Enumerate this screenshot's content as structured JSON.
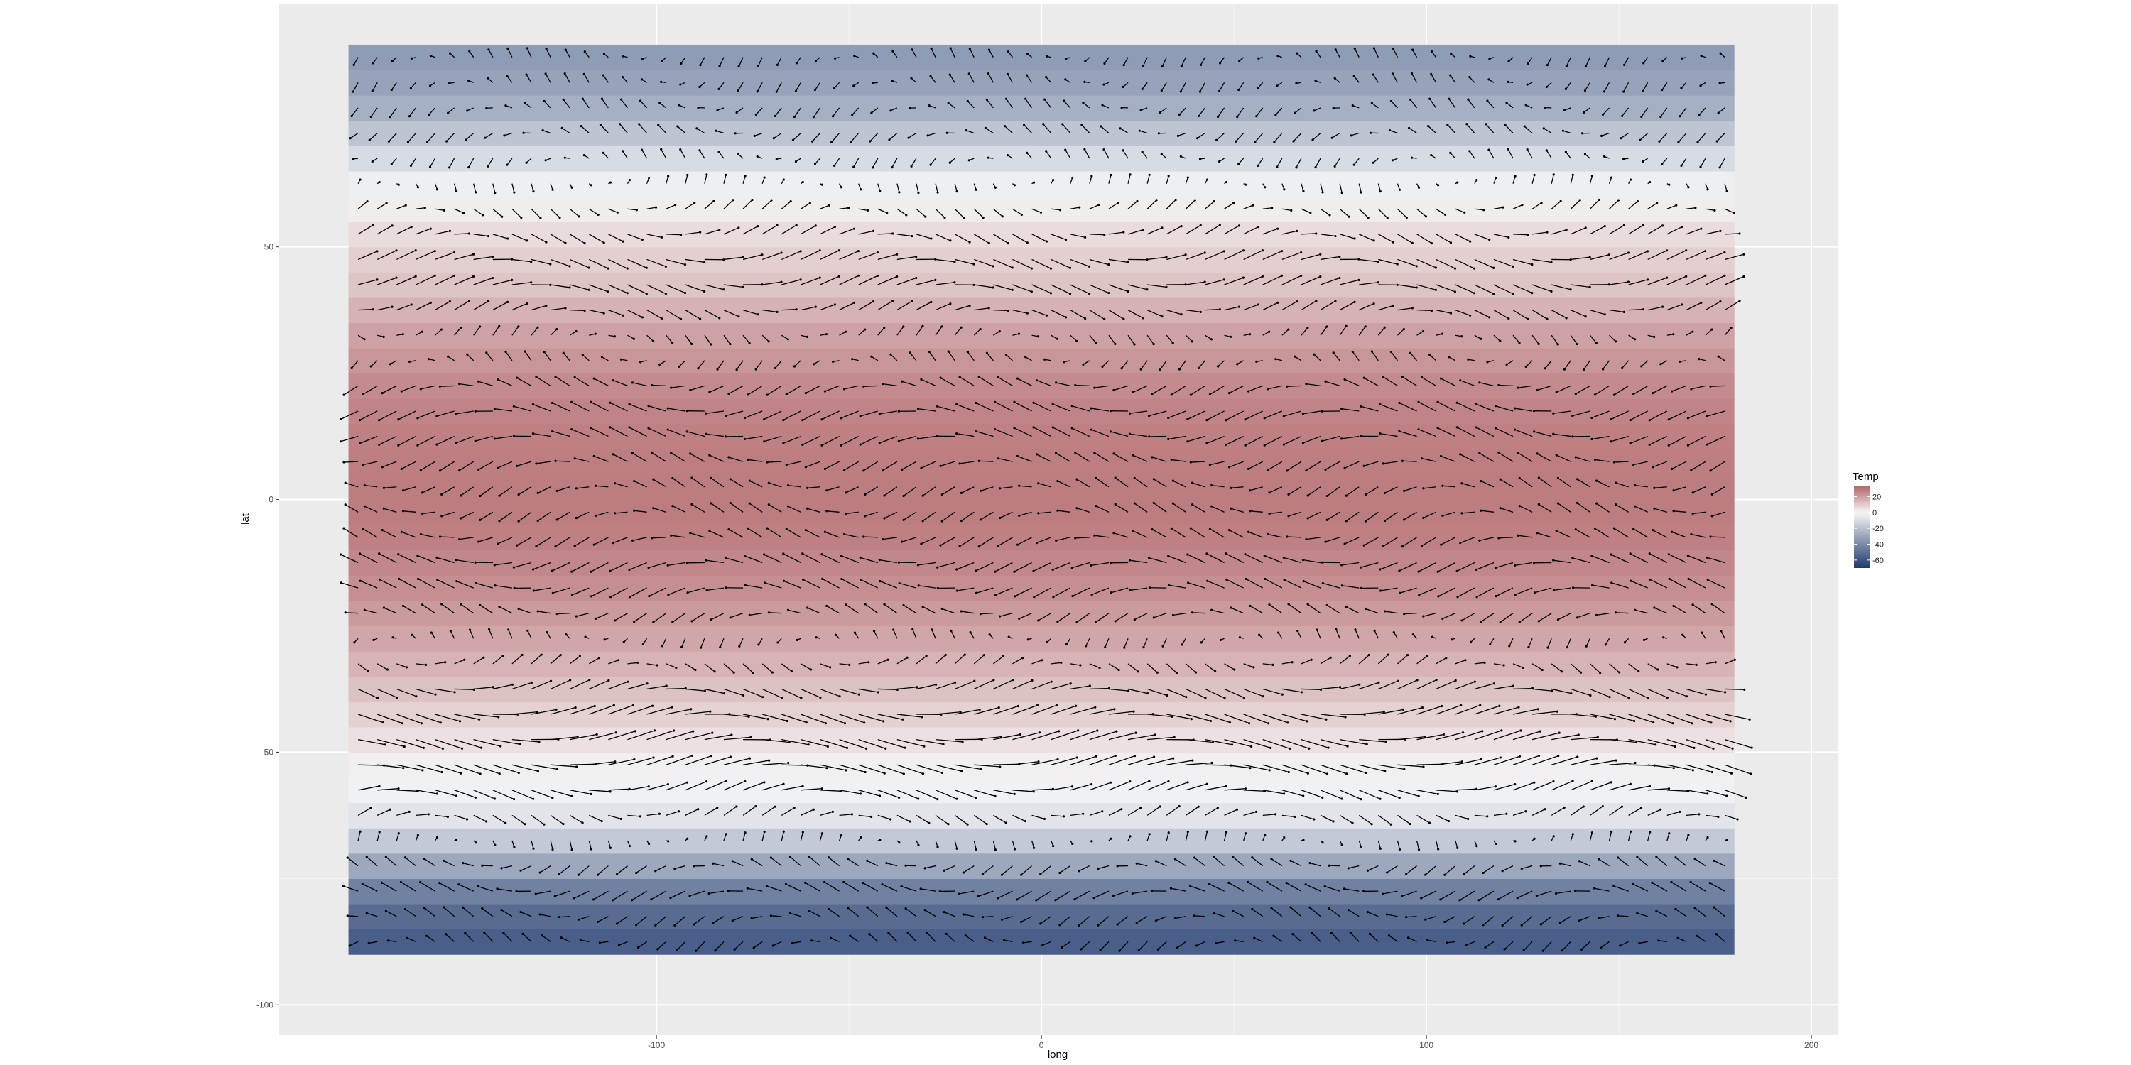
{
  "chart_data": {
    "type": "heatmap",
    "overlay": "vector-field",
    "title": "",
    "xlabel": "long",
    "ylabel": "lat",
    "xlim": [
      -198,
      207
    ],
    "ylim": [
      -106,
      98
    ],
    "xticks": [
      -100,
      0,
      100,
      200
    ],
    "yticks": [
      -100,
      -50,
      0,
      50
    ],
    "xtick_labels": [
      "-100",
      "0",
      "100",
      "200"
    ],
    "ytick_labels": [
      "-100",
      "-50",
      "0",
      "50"
    ],
    "grid": true,
    "legend": {
      "title": "Temp",
      "position": "right",
      "ticks": [
        20,
        0,
        -20,
        -40,
        -60
      ],
      "tick_labels": [
        "20",
        "0",
        "-20",
        "-40",
        "-60"
      ],
      "range": [
        -70,
        33
      ]
    },
    "color_scale": {
      "high": "#b2676b",
      "mid": "#f7f7f7",
      "low": "#1f3a6e",
      "midpoint": 0
    },
    "grid_extent": {
      "long": [
        -180,
        180
      ],
      "lat": [
        -90,
        90
      ]
    },
    "temperature_by_latitude": [
      {
        "lat": 88,
        "temp": -34
      },
      {
        "lat": 80,
        "temp": -30
      },
      {
        "lat": 72,
        "temp": -18
      },
      {
        "lat": 65,
        "temp": -6
      },
      {
        "lat": 58,
        "temp": 2
      },
      {
        "lat": 50,
        "temp": 8
      },
      {
        "lat": 42,
        "temp": 12
      },
      {
        "lat": 35,
        "temp": 18
      },
      {
        "lat": 25,
        "temp": 24
      },
      {
        "lat": 15,
        "temp": 27
      },
      {
        "lat": 5,
        "temp": 28
      },
      {
        "lat": -5,
        "temp": 28
      },
      {
        "lat": -15,
        "temp": 25
      },
      {
        "lat": -25,
        "temp": 20
      },
      {
        "lat": -35,
        "temp": 14
      },
      {
        "lat": -45,
        "temp": 7
      },
      {
        "lat": -55,
        "temp": 0
      },
      {
        "lat": -62,
        "temp": -6
      },
      {
        "lat": -70,
        "temp": -22
      },
      {
        "lat": -78,
        "temp": -45
      },
      {
        "lat": -85,
        "temp": -55
      },
      {
        "lat": -90,
        "temp": -58
      }
    ],
    "wind_by_latitude": [
      {
        "lat": 85,
        "u": -2
      },
      {
        "lat": 70,
        "u": -4
      },
      {
        "lat": 55,
        "u": 6
      },
      {
        "lat": 45,
        "u": 10
      },
      {
        "lat": 35,
        "u": 6
      },
      {
        "lat": 25,
        "u": -6
      },
      {
        "lat": 15,
        "u": -9
      },
      {
        "lat": 5,
        "u": -6
      },
      {
        "lat": -5,
        "u": -6
      },
      {
        "lat": -15,
        "u": -9
      },
      {
        "lat": -25,
        "u": -5
      },
      {
        "lat": -35,
        "u": 8
      },
      {
        "lat": -45,
        "u": 13
      },
      {
        "lat": -55,
        "u": 12
      },
      {
        "lat": -65,
        "u": 4
      },
      {
        "lat": -75,
        "u": -8
      },
      {
        "lat": -85,
        "u": -4
      }
    ]
  }
}
